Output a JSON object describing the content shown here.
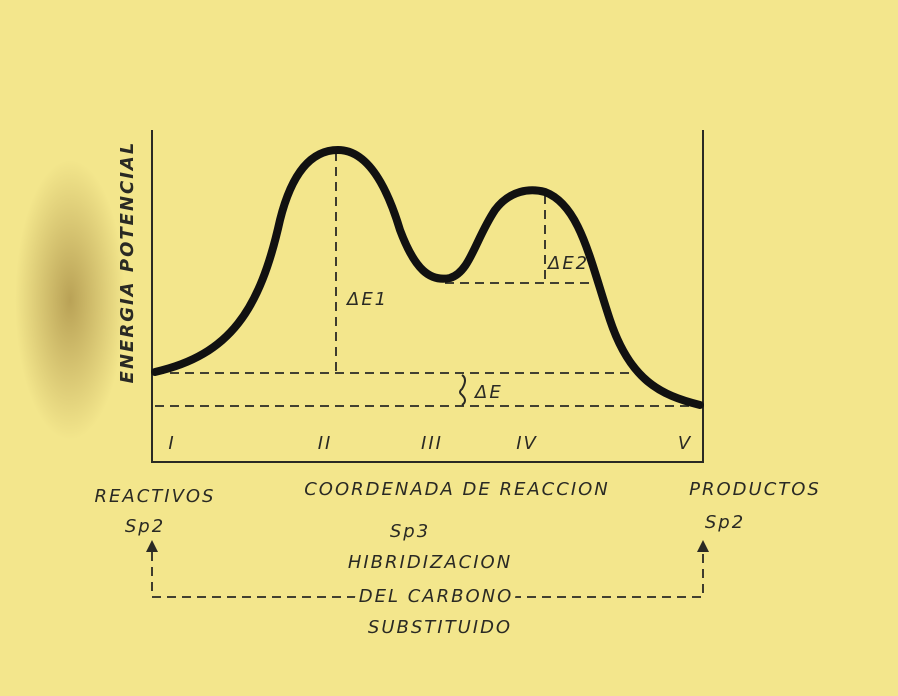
{
  "axis": {
    "y_label": "ENERGIA POTENCIAL",
    "x_label": "COORDENADA DE REACCION"
  },
  "deltas": {
    "first": "ΔE1",
    "second": "ΔE2",
    "overall": "ΔE"
  },
  "stages": [
    "I",
    "II",
    "III",
    "IV",
    "V"
  ],
  "reactants": {
    "title": "REACTIVOS",
    "hybridization": "Sp2"
  },
  "products": {
    "title": "PRODUCTOS",
    "hybridization": "Sp2"
  },
  "intermediate": {
    "hybridization": "Sp3",
    "caption": [
      "HIBRIDIZACION",
      "DEL CARBONO",
      "SUBSTITUIDO"
    ]
  }
}
